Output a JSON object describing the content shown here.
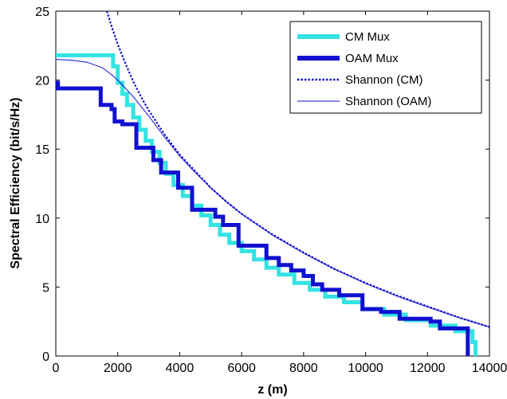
{
  "chart_data": {
    "type": "line",
    "xlabel": "z (m)",
    "ylabel": "Spectral Efficiency  (bit/s/Hz)",
    "xlim": [
      0,
      14000
    ],
    "ylim": [
      0,
      25
    ],
    "xticks": [
      "0",
      "2000",
      "4000",
      "6000",
      "8000",
      "10000",
      "12000",
      "14000"
    ],
    "yticks": [
      "0",
      "5",
      "10",
      "15",
      "20",
      "25"
    ],
    "legend_position": "top-right",
    "grid": false,
    "series": [
      {
        "name": "CM Mux",
        "style": "thick-step",
        "color": "#33e3e3",
        "points": [
          [
            0,
            21.8
          ],
          [
            1850,
            21.8
          ],
          [
            1850,
            21.0
          ],
          [
            2000,
            21.0
          ],
          [
            2000,
            19.8
          ],
          [
            2150,
            19.8
          ],
          [
            2150,
            19.0
          ],
          [
            2300,
            19.0
          ],
          [
            2300,
            18.2
          ],
          [
            2500,
            18.2
          ],
          [
            2500,
            17.3
          ],
          [
            2700,
            17.3
          ],
          [
            2700,
            16.4
          ],
          [
            2900,
            16.4
          ],
          [
            2900,
            15.6
          ],
          [
            3100,
            15.6
          ],
          [
            3100,
            14.8
          ],
          [
            3350,
            14.8
          ],
          [
            3350,
            14.0
          ],
          [
            3550,
            14.0
          ],
          [
            3550,
            13.2
          ],
          [
            3800,
            13.2
          ],
          [
            3800,
            12.4
          ],
          [
            4100,
            12.4
          ],
          [
            4100,
            11.6
          ],
          [
            4400,
            11.6
          ],
          [
            4400,
            10.9
          ],
          [
            4700,
            10.9
          ],
          [
            4700,
            10.2
          ],
          [
            5000,
            10.2
          ],
          [
            5000,
            9.5
          ],
          [
            5300,
            9.5
          ],
          [
            5300,
            8.8
          ],
          [
            5600,
            8.8
          ],
          [
            5600,
            8.2
          ],
          [
            6000,
            8.2
          ],
          [
            6000,
            7.6
          ],
          [
            6400,
            7.6
          ],
          [
            6400,
            7.0
          ],
          [
            6800,
            7.0
          ],
          [
            6800,
            6.4
          ],
          [
            7200,
            6.4
          ],
          [
            7200,
            5.9
          ],
          [
            7700,
            5.9
          ],
          [
            7700,
            5.3
          ],
          [
            8200,
            5.3
          ],
          [
            8200,
            4.8
          ],
          [
            8700,
            4.8
          ],
          [
            8700,
            4.3
          ],
          [
            9300,
            4.3
          ],
          [
            9300,
            3.9
          ],
          [
            9900,
            3.9
          ],
          [
            9900,
            3.4
          ],
          [
            10600,
            3.4
          ],
          [
            10600,
            3.0
          ],
          [
            11300,
            3.0
          ],
          [
            11300,
            2.6
          ],
          [
            12100,
            2.6
          ],
          [
            12100,
            2.2
          ],
          [
            12900,
            2.2
          ],
          [
            12900,
            1.8
          ],
          [
            13450,
            1.8
          ],
          [
            13450,
            1.0
          ],
          [
            13550,
            1.0
          ],
          [
            13550,
            0
          ]
        ]
      },
      {
        "name": "OAM Mux",
        "style": "thick-step",
        "color": "#1010d0",
        "points": [
          [
            0,
            19.8
          ],
          [
            70,
            19.8
          ],
          [
            70,
            19.4
          ],
          [
            1450,
            19.4
          ],
          [
            1450,
            18.2
          ],
          [
            1800,
            18.2
          ],
          [
            1800,
            17.9
          ],
          [
            1900,
            17.9
          ],
          [
            1900,
            17.0
          ],
          [
            2150,
            17.0
          ],
          [
            2150,
            16.8
          ],
          [
            2600,
            16.8
          ],
          [
            2600,
            15.1
          ],
          [
            3150,
            15.1
          ],
          [
            3150,
            14.2
          ],
          [
            3400,
            14.2
          ],
          [
            3400,
            13.3
          ],
          [
            3950,
            13.3
          ],
          [
            3950,
            12.2
          ],
          [
            4400,
            12.2
          ],
          [
            4400,
            10.6
          ],
          [
            5150,
            10.6
          ],
          [
            5150,
            10.1
          ],
          [
            5400,
            10.1
          ],
          [
            5400,
            9.5
          ],
          [
            5900,
            9.5
          ],
          [
            5900,
            8.0
          ],
          [
            6800,
            8.0
          ],
          [
            6800,
            7.1
          ],
          [
            7200,
            7.1
          ],
          [
            7200,
            6.6
          ],
          [
            7600,
            6.6
          ],
          [
            7600,
            6.2
          ],
          [
            8000,
            6.2
          ],
          [
            8000,
            5.8
          ],
          [
            8300,
            5.8
          ],
          [
            8300,
            5.2
          ],
          [
            8600,
            5.2
          ],
          [
            8600,
            4.8
          ],
          [
            9150,
            4.8
          ],
          [
            9150,
            4.4
          ],
          [
            9900,
            4.4
          ],
          [
            9900,
            3.4
          ],
          [
            10500,
            3.4
          ],
          [
            10500,
            3.2
          ],
          [
            11100,
            3.2
          ],
          [
            11100,
            2.7
          ],
          [
            12100,
            2.7
          ],
          [
            12100,
            2.5
          ],
          [
            12400,
            2.5
          ],
          [
            12400,
            2.0
          ],
          [
            13300,
            2.0
          ],
          [
            13300,
            0
          ]
        ]
      },
      {
        "name": "Shannon (CM)",
        "style": "dotted",
        "color": "#1010d0",
        "points": [
          [
            1650,
            25.0
          ],
          [
            1800,
            23.9
          ],
          [
            2000,
            22.6
          ],
          [
            2250,
            21.2
          ],
          [
            2500,
            19.9
          ],
          [
            2750,
            18.8
          ],
          [
            3000,
            17.8
          ],
          [
            3500,
            16.1
          ],
          [
            4000,
            14.6
          ],
          [
            4500,
            13.4
          ],
          [
            5000,
            12.2
          ],
          [
            5500,
            11.2
          ],
          [
            6000,
            10.3
          ],
          [
            7000,
            8.8
          ],
          [
            8000,
            7.5
          ],
          [
            9000,
            6.3
          ],
          [
            10000,
            5.3
          ],
          [
            11000,
            4.4
          ],
          [
            12000,
            3.6
          ],
          [
            13000,
            2.8
          ],
          [
            14000,
            2.1
          ]
        ]
      },
      {
        "name": "Shannon (OAM)",
        "style": "thin",
        "color": "#1010d0",
        "points": [
          [
            0,
            21.5
          ],
          [
            500,
            21.45
          ],
          [
            1000,
            21.3
          ],
          [
            1500,
            20.9
          ],
          [
            1800,
            20.4
          ],
          [
            2000,
            20.0
          ],
          [
            2250,
            19.4
          ],
          [
            2500,
            18.8
          ],
          [
            2750,
            18.1
          ],
          [
            3000,
            17.4
          ],
          [
            3500,
            15.9
          ],
          [
            4000,
            14.5
          ],
          [
            4500,
            13.3
          ],
          [
            5000,
            12.2
          ],
          [
            5500,
            11.2
          ],
          [
            6000,
            10.3
          ],
          [
            7000,
            8.75
          ],
          [
            8000,
            7.45
          ],
          [
            9000,
            6.3
          ],
          [
            10000,
            5.25
          ],
          [
            11000,
            4.35
          ],
          [
            12000,
            3.55
          ],
          [
            13000,
            2.8
          ],
          [
            14000,
            2.1
          ]
        ]
      }
    ]
  }
}
